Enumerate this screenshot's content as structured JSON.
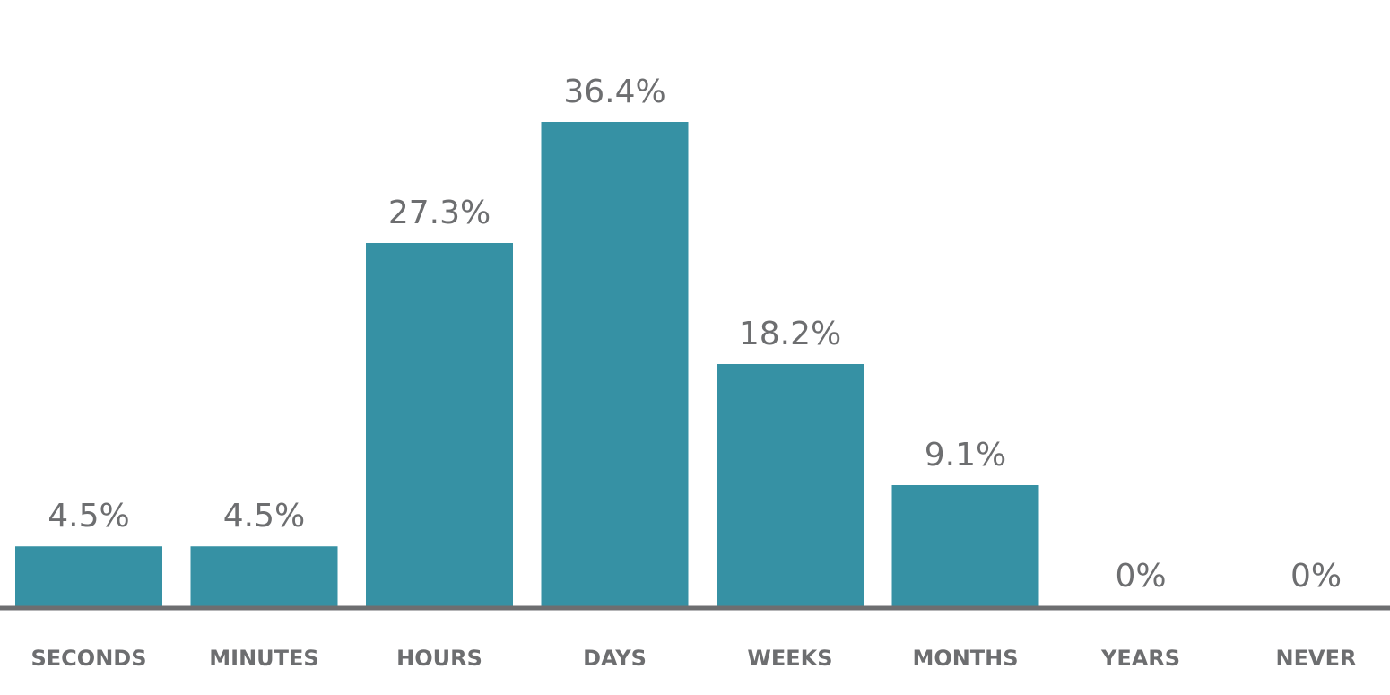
{
  "chart_data": {
    "type": "bar",
    "categories": [
      "SECONDS",
      "MINUTES",
      "HOURS",
      "DAYS",
      "WEEKS",
      "MONTHS",
      "YEARS",
      "NEVER"
    ],
    "values": [
      4.5,
      4.5,
      27.3,
      36.4,
      18.2,
      9.1,
      0,
      0
    ],
    "value_labels": [
      "4.5%",
      "4.5%",
      "27.3%",
      "36.4%",
      "18.2%",
      "9.1%",
      "0%",
      "0%"
    ],
    "title": "",
    "xlabel": "",
    "ylabel": "",
    "ylim": [
      0,
      40
    ],
    "grid": false,
    "legend": "none",
    "colors": {
      "bar": "#3691a4",
      "baseline": "#6d6e70",
      "value_text": "#6d6e70",
      "label_text": "#6d6e70"
    }
  }
}
